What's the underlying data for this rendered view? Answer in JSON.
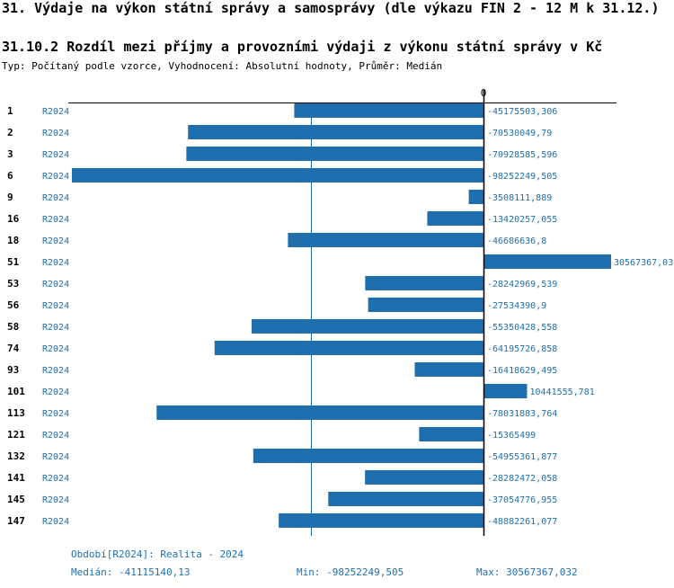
{
  "header": {
    "title": "31. Výdaje na výkon státní správy a samosprávy (dle výkazu FIN 2 - 12 M k 31.12.)",
    "subtitle": "31.10.2 Rozdíl mezi příjmy a provozními výdaji z výkonu státní správy v Kč",
    "type_line": "Typ: Počítaný podle vzorce, Vyhodnocení: Absolutní hodnoty, Průměr: Medián"
  },
  "chart_data": {
    "type": "bar",
    "orientation": "horizontal",
    "series_label": "R2024",
    "zero_label": "0",
    "xlim": [
      -98252249.505,
      30567367.032
    ],
    "reference_line": {
      "name": "Medián",
      "value": -41115140.13
    },
    "categories": [
      "1",
      "2",
      "3",
      "6",
      "9",
      "16",
      "18",
      "51",
      "53",
      "56",
      "58",
      "74",
      "93",
      "101",
      "113",
      "121",
      "132",
      "141",
      "145",
      "147"
    ],
    "values": [
      -45175503.306,
      -70530049.79,
      -70928585.596,
      -98252249.505,
      -3508111.889,
      -13420257.055,
      -46686636.8,
      30567367.032,
      -28242969.539,
      -27534390.9,
      -55350428.558,
      -64195726.858,
      -16418629.495,
      10441555.781,
      -78031883.764,
      -15365499,
      -54955361.877,
      -28282472.058,
      -37054776.955,
      -48882261.077
    ],
    "value_labels": [
      "-45175503,306",
      "-70530049,79",
      "-70928585,596",
      "-98252249,505",
      "-3508111,889",
      "-13420257,055",
      "-46686636,8",
      "30567367,03",
      "-28242969,539",
      "-27534390,9",
      "-55350428,558",
      "-64195726,858",
      "-16418629,495",
      "10441555,781",
      "-78031883,764",
      "-15365499",
      "-54955361,877",
      "-28282472,058",
      "-37054776,955",
      "-48882261,077"
    ]
  },
  "footer": {
    "period": "Období[R2024]: Realita - 2024",
    "median": "Medián: -41115140,13",
    "min": "Min: -98252249,505",
    "max": "Max: 30567367,032"
  },
  "colors": {
    "bar": "#1f6faf",
    "label": "#1f6faf",
    "axis": "#000000"
  }
}
